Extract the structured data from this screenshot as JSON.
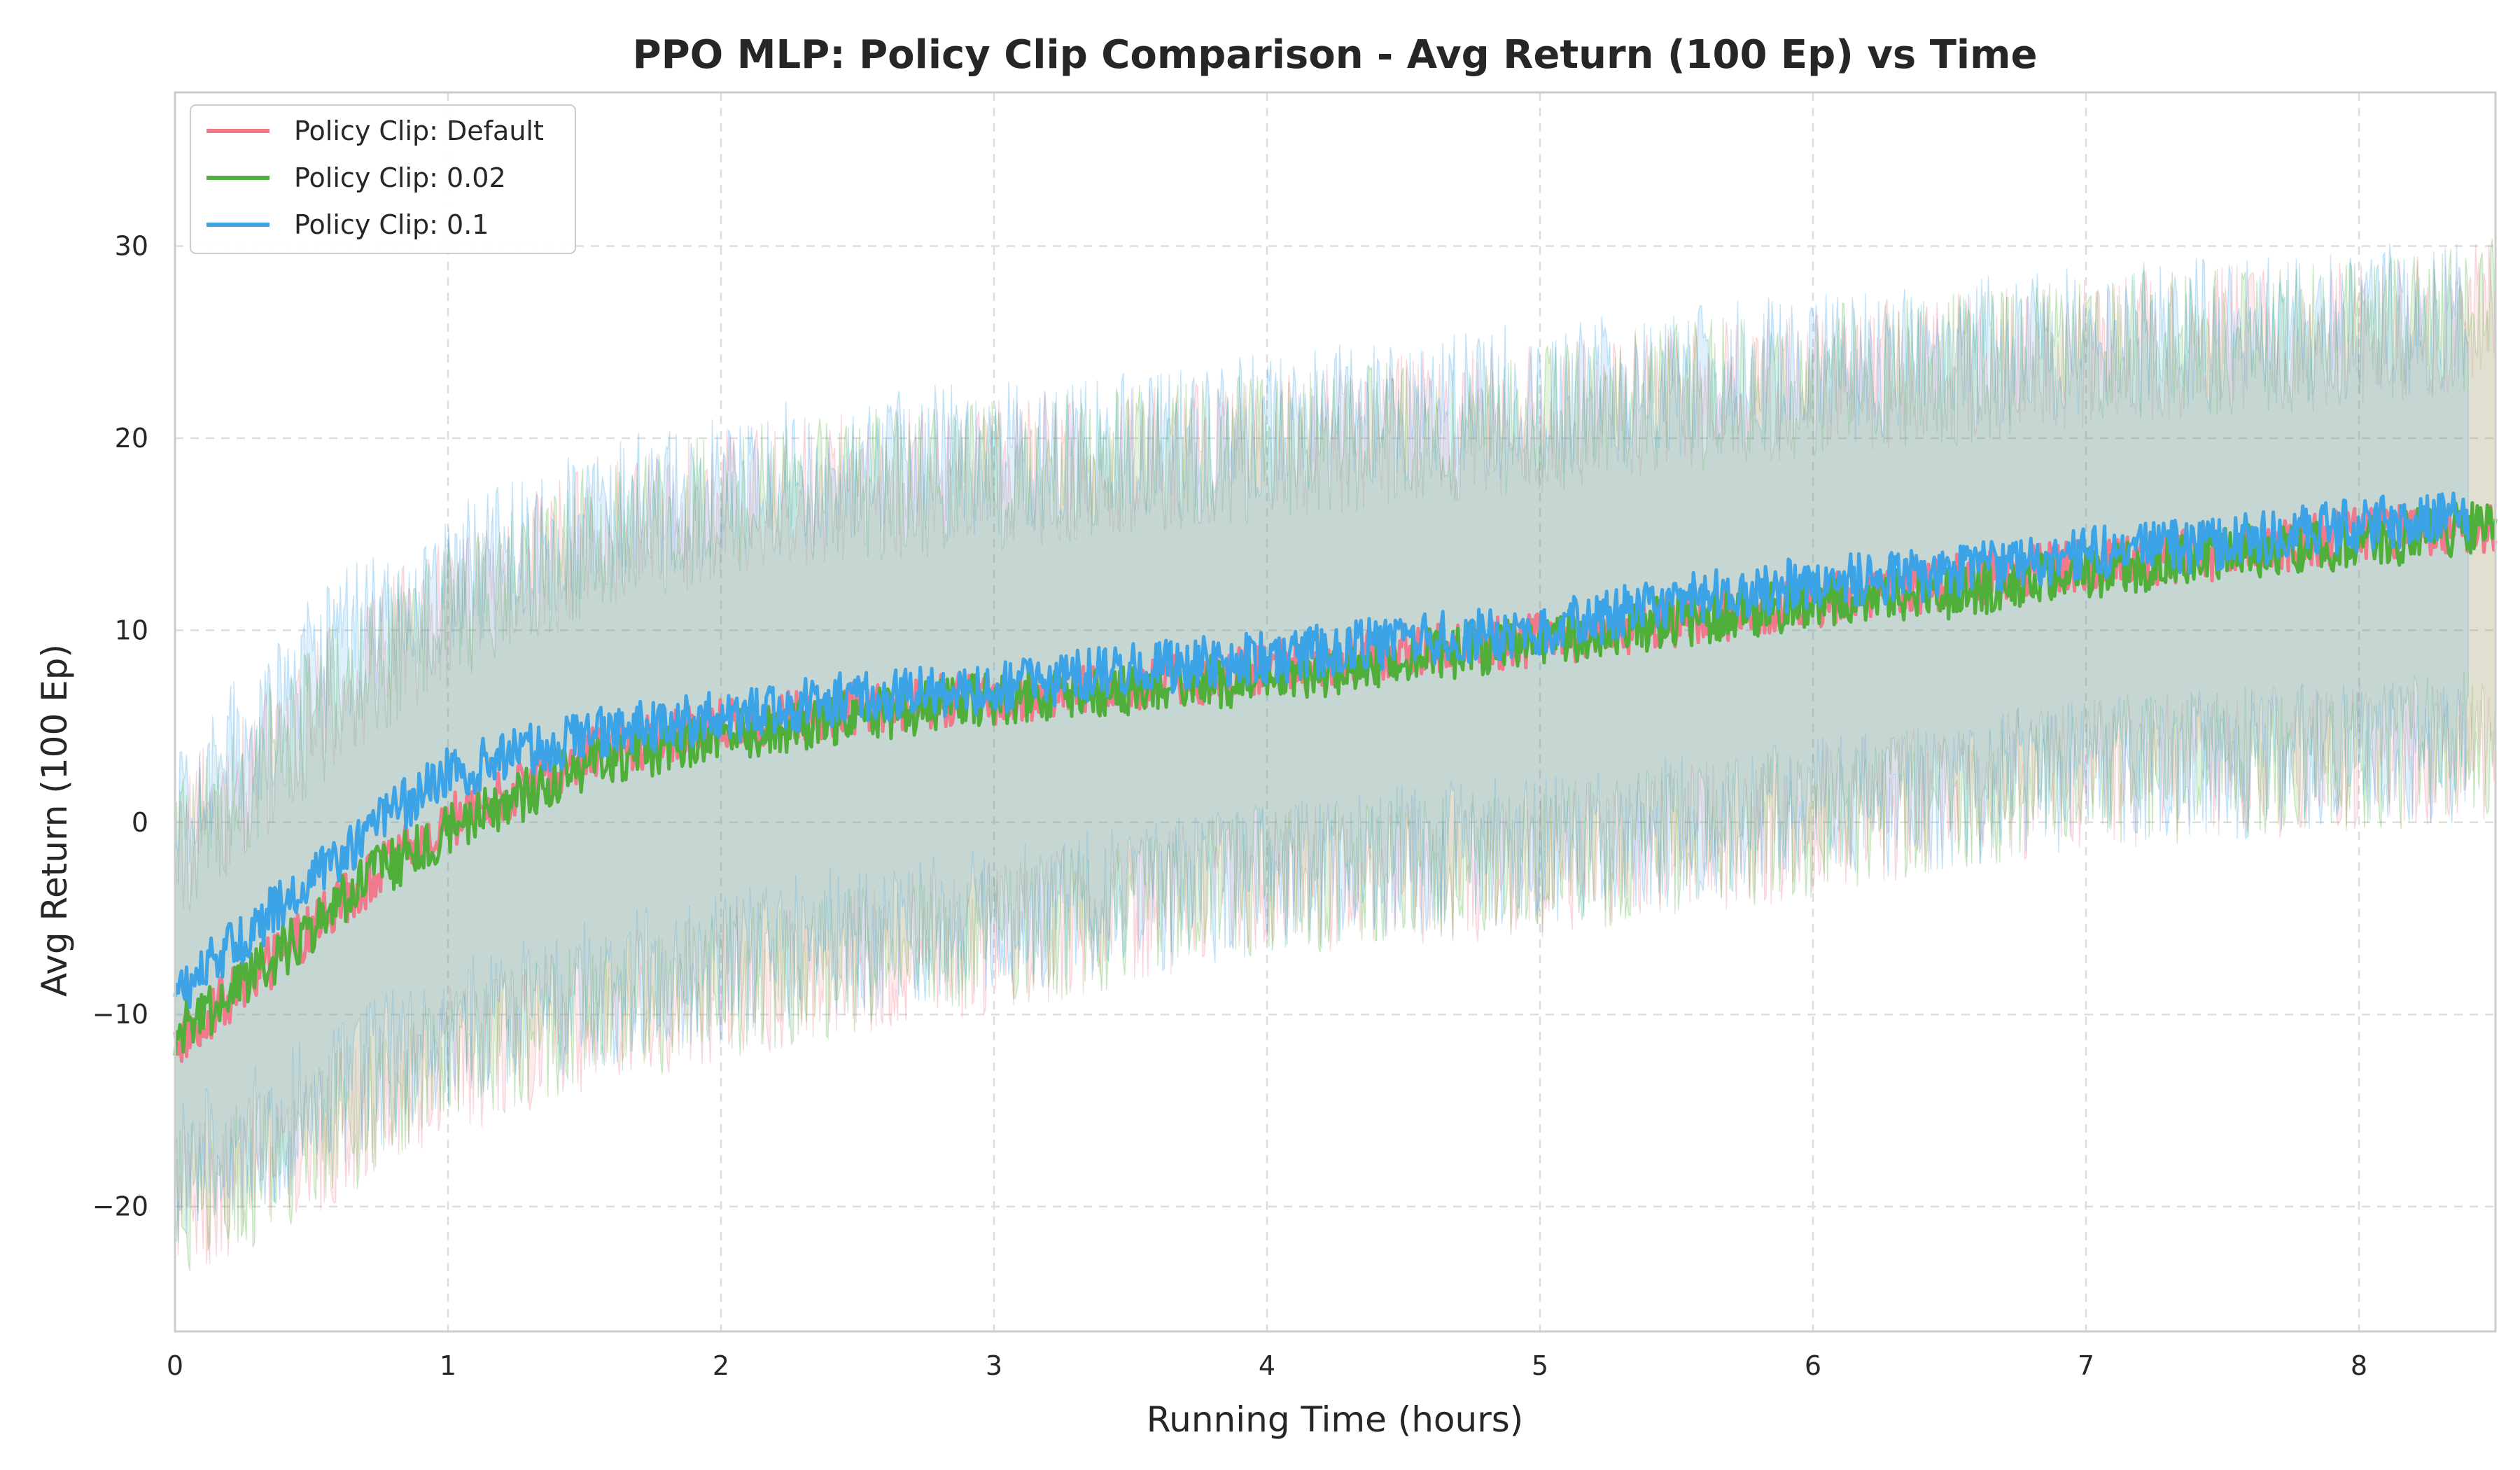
{
  "chart_data": {
    "type": "line",
    "title": "PPO MLP: Policy Clip Comparison - Avg Return (100 Ep) vs Time",
    "xlabel": "Running Time (hours)",
    "ylabel": "Avg Return (100 Ep)",
    "xlim": [
      0,
      8.5
    ],
    "ylim": [
      -26.5,
      38
    ],
    "xticks": [
      0,
      1,
      2,
      3,
      4,
      5,
      6,
      7,
      8
    ],
    "yticks": [
      -20,
      -10,
      0,
      10,
      20,
      30
    ],
    "ytick_labels": [
      "−20",
      "−10",
      "0",
      "10",
      "20",
      "30"
    ],
    "grid": true,
    "legend_position": "top-left",
    "series": [
      {
        "name": "Policy Clip: Default",
        "color": "#f07a8c",
        "x": [
          0,
          0.25,
          0.5,
          0.75,
          1.0,
          1.5,
          2.0,
          2.5,
          3.0,
          3.5,
          4.0,
          4.5,
          5.0,
          5.5,
          6.0,
          6.5,
          7.0,
          7.5,
          8.0,
          8.5
        ],
        "mean": [
          -11.5,
          -8.5,
          -5.5,
          -2.5,
          0.0,
          3.5,
          5.0,
          6.0,
          6.5,
          7.0,
          8.0,
          9.0,
          9.5,
          10.5,
          11.5,
          12.5,
          13.5,
          14.0,
          15.0,
          15.5
        ],
        "band_lower": [
          -20.0,
          -18.5,
          -16.5,
          -14.5,
          -12.5,
          -10.0,
          -8.5,
          -7.0,
          -6.0,
          -4.5,
          -3.0,
          -2.5,
          -2.0,
          -1.0,
          0.0,
          1.5,
          2.5,
          3.0,
          3.5,
          4.0
        ],
        "band_upper": [
          -1.5,
          2.0,
          5.5,
          8.5,
          11.0,
          14.5,
          16.5,
          17.5,
          18.0,
          19.0,
          19.5,
          20.5,
          21.0,
          22.0,
          23.0,
          23.5,
          24.5,
          25.0,
          25.5,
          26.5
        ]
      },
      {
        "name": "Policy Clip: 0.02",
        "color": "#4faf3a",
        "x": [
          0,
          0.25,
          0.5,
          0.75,
          1.0,
          1.5,
          2.0,
          2.5,
          3.0,
          3.5,
          4.0,
          4.5,
          5.0,
          5.5,
          6.0,
          6.5,
          7.0,
          7.5,
          8.0,
          8.5
        ],
        "mean": [
          -11.0,
          -8.5,
          -5.5,
          -2.5,
          -0.5,
          3.0,
          4.5,
          5.5,
          6.5,
          7.0,
          7.5,
          8.5,
          9.5,
          10.5,
          11.5,
          12.0,
          13.0,
          14.0,
          14.5,
          15.5
        ],
        "band_lower": [
          -20.0,
          -18.5,
          -16.5,
          -14.5,
          -12.5,
          -10.0,
          -8.5,
          -7.0,
          -6.0,
          -4.5,
          -3.0,
          -2.5,
          -2.0,
          -1.0,
          0.0,
          1.5,
          2.5,
          3.0,
          3.5,
          4.0
        ],
        "band_upper": [
          -1.5,
          2.0,
          5.5,
          8.5,
          11.0,
          14.5,
          16.5,
          17.5,
          18.0,
          19.0,
          19.5,
          20.5,
          21.0,
          22.0,
          23.0,
          23.5,
          24.5,
          25.0,
          25.5,
          26.5
        ]
      },
      {
        "name": "Policy Clip: 0.1",
        "color": "#3ba3e6",
        "x": [
          0,
          0.25,
          0.5,
          0.75,
          1.0,
          1.5,
          2.0,
          2.5,
          3.0,
          3.5,
          4.0,
          4.5,
          5.0,
          5.5,
          6.0,
          6.5,
          7.0,
          7.5,
          8.0,
          8.4
        ],
        "mean": [
          -9.0,
          -6.0,
          -3.0,
          0.0,
          2.5,
          4.5,
          5.5,
          6.5,
          7.0,
          8.0,
          8.5,
          9.5,
          10.0,
          11.5,
          12.5,
          13.0,
          14.0,
          14.5,
          15.5,
          16.0
        ],
        "band_lower": [
          -18.5,
          -17.0,
          -15.0,
          -13.0,
          -11.0,
          -9.0,
          -7.5,
          -6.0,
          -5.0,
          -4.0,
          -3.0,
          -2.0,
          -1.5,
          -0.5,
          0.5,
          1.5,
          2.5,
          3.0,
          3.5,
          4.0
        ],
        "band_upper": [
          0.0,
          4.0,
          8.0,
          10.5,
          12.5,
          15.5,
          17.5,
          18.5,
          19.0,
          19.5,
          20.5,
          21.5,
          22.0,
          23.0,
          23.5,
          24.5,
          25.0,
          25.5,
          26.0,
          26.5
        ]
      }
    ]
  }
}
